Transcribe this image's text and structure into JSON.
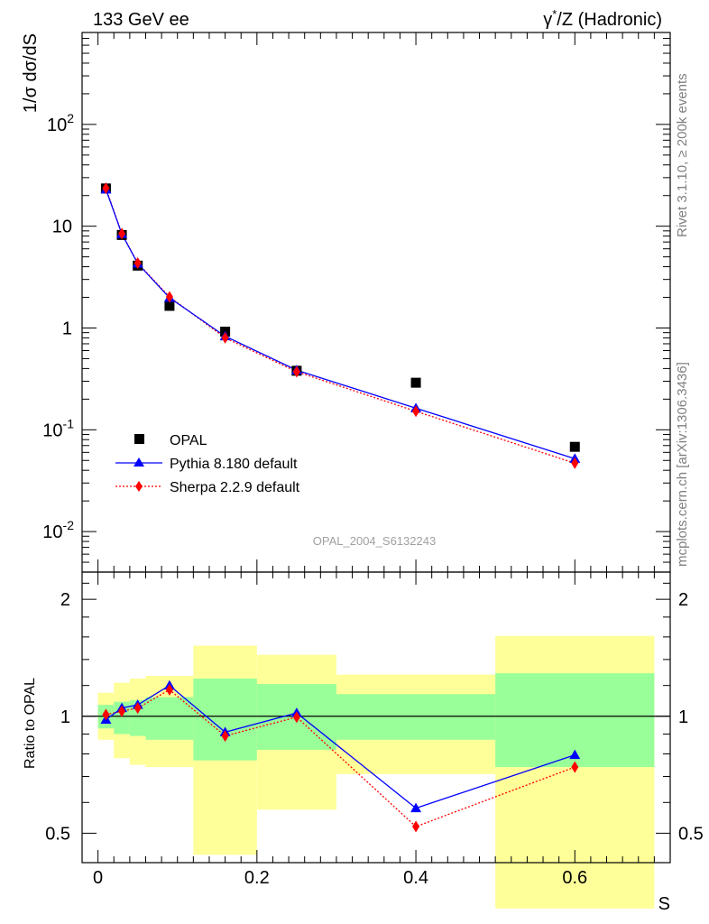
{
  "header": {
    "left": "133 GeV ee",
    "right_prefix": "γ",
    "right_sup": "*",
    "right_suffix": "/Z (Hadronic)"
  },
  "side_text": {
    "upper": "Rivet 3.1.10, ≥ 200k events",
    "lower": "mcplots.cern.ch [arXiv:1306.3436]"
  },
  "watermark": "OPAL_2004_S6132243",
  "colors": {
    "data": "#000000",
    "pythia": "#0000ff",
    "sherpa": "#ff0000",
    "band_inner": "#99ff99",
    "band_outer": "#ffff99"
  },
  "chart_data": [
    {
      "type": "scatter",
      "ylabel": "1/σ dσ/dS",
      "xlabel": "",
      "yscale": "log",
      "ylim": [
        0.004,
        800
      ],
      "xlim": [
        -0.02,
        0.72
      ],
      "y_ticks": [
        "10^-2",
        "10^-1",
        "1",
        "10",
        "10^2"
      ],
      "legend_position": "bottom-left",
      "legend": [
        "OPAL",
        "Pythia 8.180 default",
        "Sherpa 2.2.9 default"
      ],
      "series": [
        {
          "name": "OPAL",
          "style": "square",
          "x": [
            0.01,
            0.03,
            0.05,
            0.09,
            0.16,
            0.25,
            0.4,
            0.6
          ],
          "y": [
            23.5,
            8.2,
            4.1,
            1.65,
            0.92,
            0.38,
            0.29,
            0.068
          ]
        },
        {
          "name": "Pythia 8.180 default",
          "style": "line-triangle",
          "x": [
            0.01,
            0.03,
            0.05,
            0.09,
            0.16,
            0.25,
            0.4,
            0.6
          ],
          "y": [
            23.0,
            8.4,
            4.3,
            1.98,
            0.83,
            0.385,
            0.163,
            0.052
          ]
        },
        {
          "name": "Sherpa 2.2.9 default",
          "style": "dotted-diamond",
          "x": [
            0.01,
            0.03,
            0.05,
            0.09,
            0.16,
            0.25,
            0.4,
            0.6
          ],
          "y": [
            23.6,
            8.45,
            4.35,
            2.02,
            0.8,
            0.372,
            0.152,
            0.047
          ]
        }
      ]
    },
    {
      "type": "line",
      "ylabel": "Ratio to OPAL",
      "xlabel": "S",
      "yscale": "log",
      "ylim": [
        0.42,
        2.35
      ],
      "xlim": [
        -0.02,
        0.72
      ],
      "x_ticks": [
        "0",
        "0.2",
        "0.4",
        "0.6"
      ],
      "y_ticks": [
        "0.5",
        "1",
        "2"
      ],
      "reference_line": 1,
      "bands": [
        {
          "x0": 0.0,
          "x1": 0.02,
          "inner": [
            0.93,
            1.07
          ],
          "outer": [
            0.87,
            1.15
          ]
        },
        {
          "x0": 0.02,
          "x1": 0.04,
          "inner": [
            0.9,
            1.09
          ],
          "outer": [
            0.78,
            1.22
          ]
        },
        {
          "x0": 0.04,
          "x1": 0.06,
          "inner": [
            0.89,
            1.1
          ],
          "outer": [
            0.75,
            1.25
          ]
        },
        {
          "x0": 0.06,
          "x1": 0.12,
          "inner": [
            0.87,
            1.12
          ],
          "outer": [
            0.74,
            1.27
          ]
        },
        {
          "x0": 0.12,
          "x1": 0.2,
          "inner": [
            0.77,
            1.25
          ],
          "outer": [
            0.44,
            1.52
          ]
        },
        {
          "x0": 0.2,
          "x1": 0.3,
          "inner": [
            0.82,
            1.21
          ],
          "outer": [
            0.575,
            1.44
          ]
        },
        {
          "x0": 0.3,
          "x1": 0.5,
          "inner": [
            0.87,
            1.14
          ],
          "outer": [
            0.71,
            1.28
          ]
        },
        {
          "x0": 0.5,
          "x1": 0.7,
          "inner": [
            0.74,
            1.29
          ],
          "outer": [
            0.32,
            1.61
          ]
        }
      ],
      "series": [
        {
          "name": "Pythia 8.180 default",
          "style": "line-triangle",
          "x": [
            0.01,
            0.03,
            0.05,
            0.09,
            0.16,
            0.25,
            0.4,
            0.6
          ],
          "y": [
            0.98,
            1.05,
            1.07,
            1.2,
            0.91,
            1.02,
            0.58,
            0.795
          ]
        },
        {
          "name": "Sherpa 2.2.9 default",
          "style": "dotted-diamond",
          "x": [
            0.01,
            0.03,
            0.05,
            0.09,
            0.16,
            0.25,
            0.4,
            0.6
          ],
          "y": [
            1.01,
            1.03,
            1.05,
            1.17,
            0.89,
            0.995,
            0.52,
            0.74
          ]
        }
      ]
    }
  ]
}
